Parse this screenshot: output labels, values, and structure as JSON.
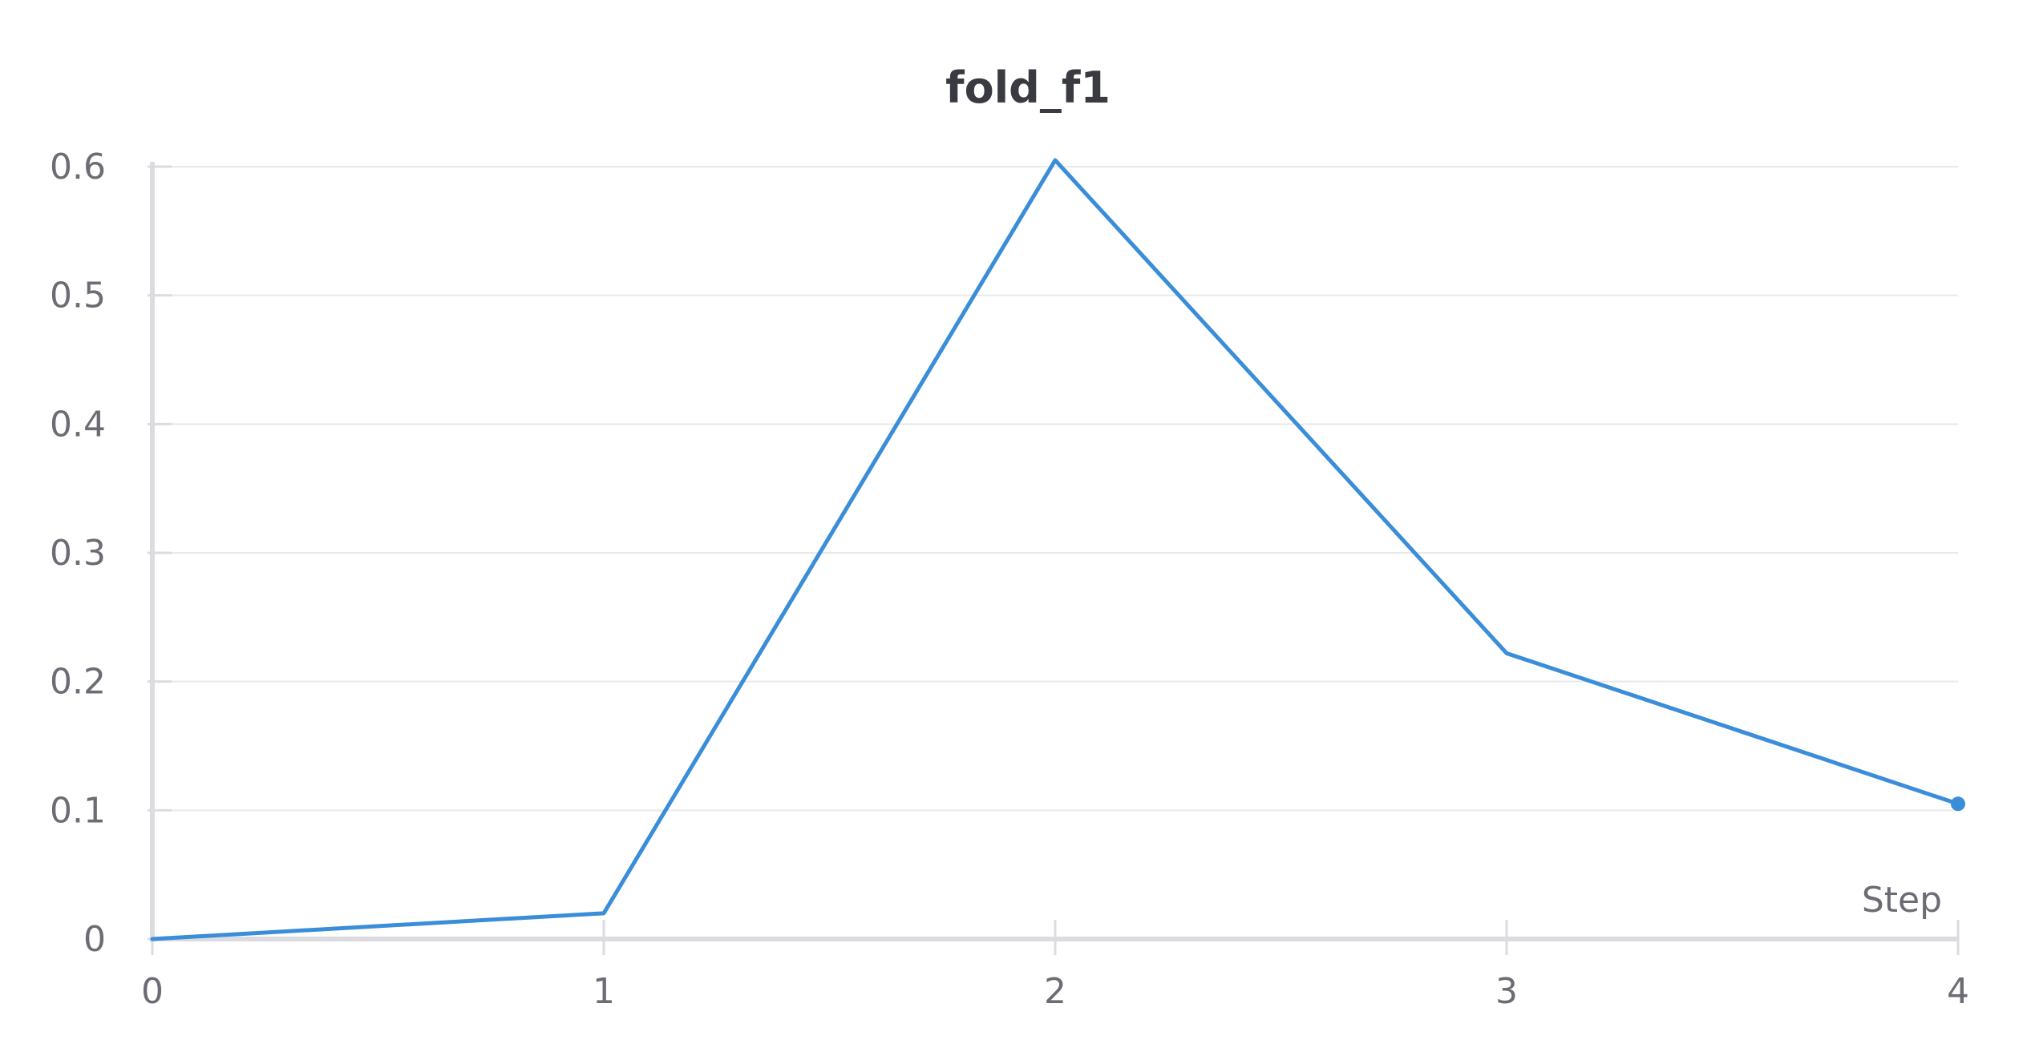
{
  "chart_data": {
    "type": "line",
    "title": "fold_f1",
    "xlabel": "Step",
    "ylabel": "",
    "x": [
      0,
      1,
      2,
      3,
      4
    ],
    "series": [
      {
        "values": [
          0.0,
          0.02,
          0.605,
          0.222,
          0.105
        ],
        "color": "#3a8dd8"
      }
    ],
    "xlim": [
      0,
      4
    ],
    "ylim": [
      0,
      0.6
    ],
    "x_ticks": [
      "0",
      "1",
      "2",
      "3",
      "4"
    ],
    "y_ticks": [
      "0",
      "0.1",
      "0.2",
      "0.3",
      "0.4",
      "0.5",
      "0.6"
    ],
    "grid": true,
    "last_point_marker": true,
    "colors": {
      "line": "#3a8dd8",
      "grid": "#e9e9ec",
      "axis": "#dcdce0",
      "text": "#6b6c74",
      "title": "#3a3b40"
    }
  }
}
